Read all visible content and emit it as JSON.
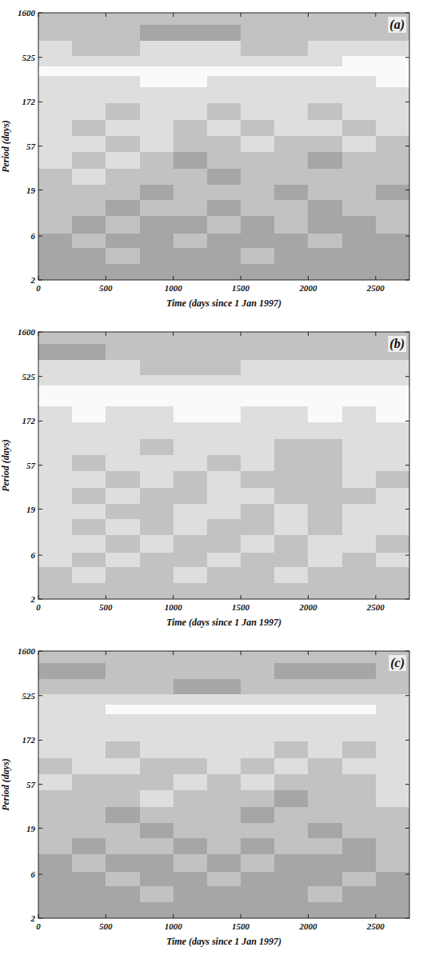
{
  "chart_data": [
    {
      "type": "heatmap",
      "title": "(a)",
      "x_label": "Time (days since 1 Jan 1997)",
      "y_label": "Period (days)",
      "xlim": [
        0,
        2750
      ],
      "xticks": [
        0,
        500,
        1000,
        1500,
        2000,
        2500
      ],
      "ylim": [
        2,
        1600
      ],
      "yticks": [
        2,
        6,
        19,
        57,
        172,
        525,
        1600
      ],
      "log": "y",
      "zlim": [
        0,
        4
      ],
      "x_edges": [
        0,
        250,
        500,
        750,
        1000,
        1250,
        1500,
        1750,
        2000,
        2250,
        2500,
        2750
      ],
      "y_edges": [
        2,
        3,
        4.5,
        6.5,
        10,
        15,
        22,
        33,
        50,
        75,
        110,
        170,
        250,
        330,
        420,
        550,
        800,
        1200,
        1600
      ],
      "cells": [
        [
          3,
          3,
          3,
          3,
          3,
          3,
          3,
          3,
          3,
          3,
          3
        ],
        [
          3,
          3,
          2,
          3,
          3,
          3,
          2,
          3,
          3,
          3,
          3
        ],
        [
          3,
          2,
          3,
          3,
          2,
          3,
          3,
          3,
          2,
          3,
          3
        ],
        [
          2,
          3,
          2,
          3,
          3,
          2,
          3,
          2,
          3,
          3,
          2
        ],
        [
          2,
          2,
          3,
          2,
          2,
          3,
          2,
          2,
          3,
          2,
          2
        ],
        [
          2,
          2,
          2,
          3,
          2,
          2,
          2,
          3,
          2,
          2,
          3
        ],
        [
          2,
          1,
          2,
          2,
          2,
          3,
          2,
          2,
          2,
          2,
          2
        ],
        [
          1,
          2,
          1,
          2,
          3,
          2,
          2,
          2,
          3,
          2,
          2
        ],
        [
          1,
          1,
          2,
          1,
          2,
          2,
          1,
          2,
          2,
          1,
          2
        ],
        [
          1,
          2,
          1,
          1,
          2,
          1,
          2,
          1,
          1,
          2,
          1
        ],
        [
          1,
          1,
          2,
          1,
          1,
          2,
          1,
          1,
          2,
          1,
          1
        ],
        [
          1,
          1,
          1,
          1,
          1,
          1,
          1,
          1,
          1,
          1,
          1
        ],
        [
          1,
          1,
          1,
          0,
          0,
          1,
          1,
          1,
          1,
          1,
          0
        ],
        [
          0,
          0,
          0,
          0,
          0,
          0,
          0,
          0,
          0,
          0,
          0
        ],
        [
          1,
          1,
          1,
          1,
          1,
          1,
          1,
          1,
          1,
          0,
          0
        ],
        [
          1,
          2,
          2,
          1,
          1,
          1,
          2,
          2,
          1,
          1,
          1
        ],
        [
          2,
          2,
          2,
          3,
          3,
          3,
          2,
          2,
          2,
          2,
          2
        ],
        [
          2,
          2,
          2,
          2,
          2,
          2,
          2,
          2,
          2,
          2,
          2
        ]
      ]
    },
    {
      "type": "heatmap",
      "title": "(b)",
      "x_label": "Time (days since 1 Jan 1997)",
      "y_label": "Period (days)",
      "xlim": [
        0,
        2750
      ],
      "xticks": [
        0,
        500,
        1000,
        1500,
        2000,
        2500
      ],
      "ylim": [
        2,
        1600
      ],
      "yticks": [
        2,
        6,
        19,
        57,
        172,
        525,
        1600
      ],
      "log": "y",
      "zlim": [
        0,
        4
      ],
      "x_edges": [
        0,
        250,
        500,
        750,
        1000,
        1250,
        1500,
        1750,
        2000,
        2250,
        2500,
        2750
      ],
      "y_edges": [
        2,
        3,
        4.5,
        6.5,
        10,
        15,
        22,
        33,
        50,
        75,
        110,
        170,
        250,
        330,
        420,
        550,
        800,
        1200,
        1600
      ],
      "cells": [
        [
          2,
          2,
          2,
          2,
          2,
          2,
          2,
          2,
          2,
          2,
          2
        ],
        [
          2,
          1,
          2,
          2,
          1,
          2,
          2,
          1,
          2,
          2,
          2
        ],
        [
          1,
          2,
          1,
          2,
          2,
          1,
          2,
          2,
          1,
          2,
          1
        ],
        [
          1,
          1,
          2,
          1,
          2,
          2,
          1,
          2,
          1,
          1,
          2
        ],
        [
          1,
          2,
          1,
          2,
          1,
          2,
          2,
          1,
          2,
          1,
          1
        ],
        [
          1,
          1,
          2,
          2,
          1,
          1,
          2,
          1,
          2,
          1,
          1
        ],
        [
          1,
          2,
          1,
          2,
          2,
          1,
          1,
          2,
          2,
          2,
          1
        ],
        [
          1,
          1,
          2,
          1,
          2,
          1,
          2,
          2,
          2,
          1,
          2
        ],
        [
          1,
          2,
          1,
          1,
          1,
          2,
          1,
          2,
          2,
          1,
          1
        ],
        [
          1,
          1,
          1,
          2,
          1,
          1,
          1,
          2,
          2,
          1,
          1
        ],
        [
          1,
          1,
          1,
          1,
          1,
          1,
          1,
          1,
          1,
          1,
          1
        ],
        [
          1,
          0,
          1,
          1,
          0,
          0,
          1,
          1,
          0,
          1,
          0
        ],
        [
          0,
          0,
          0,
          0,
          0,
          0,
          0,
          0,
          0,
          0,
          0
        ],
        [
          0,
          0,
          0,
          0,
          0,
          0,
          0,
          0,
          0,
          0,
          0
        ],
        [
          1,
          1,
          1,
          1,
          1,
          1,
          1,
          1,
          1,
          1,
          1
        ],
        [
          1,
          1,
          1,
          2,
          2,
          2,
          1,
          1,
          1,
          1,
          1
        ],
        [
          3,
          3,
          2,
          2,
          2,
          2,
          2,
          2,
          2,
          2,
          2
        ],
        [
          2,
          2,
          2,
          2,
          2,
          2,
          2,
          2,
          2,
          2,
          2
        ]
      ]
    },
    {
      "type": "heatmap",
      "title": "(c)",
      "x_label": "Time (days since 1 Jan 1997)",
      "y_label": "Period (days)",
      "xlim": [
        0,
        2750
      ],
      "xticks": [
        0,
        500,
        1000,
        1500,
        2000,
        2500
      ],
      "ylim": [
        2,
        1600
      ],
      "yticks": [
        2,
        6,
        19,
        57,
        172,
        525,
        1600
      ],
      "log": "y",
      "zlim": [
        0,
        4
      ],
      "x_edges": [
        0,
        250,
        500,
        750,
        1000,
        1250,
        1500,
        1750,
        2000,
        2250,
        2500,
        2750
      ],
      "y_edges": [
        2,
        3,
        4.5,
        6.5,
        10,
        15,
        22,
        33,
        50,
        75,
        110,
        170,
        250,
        330,
        420,
        550,
        800,
        1200,
        1600
      ],
      "cells": [
        [
          3,
          3,
          3,
          3,
          3,
          3,
          3,
          3,
          3,
          3,
          3
        ],
        [
          3,
          3,
          3,
          2,
          3,
          3,
          3,
          3,
          2,
          3,
          3
        ],
        [
          3,
          3,
          2,
          3,
          3,
          2,
          3,
          3,
          3,
          2,
          3
        ],
        [
          3,
          2,
          3,
          3,
          2,
          3,
          2,
          3,
          3,
          3,
          2
        ],
        [
          2,
          3,
          2,
          2,
          3,
          2,
          3,
          2,
          2,
          3,
          2
        ],
        [
          2,
          2,
          2,
          3,
          2,
          2,
          2,
          2,
          3,
          2,
          2
        ],
        [
          2,
          2,
          3,
          2,
          2,
          2,
          3,
          2,
          2,
          2,
          2
        ],
        [
          2,
          2,
          2,
          1,
          2,
          2,
          2,
          3,
          2,
          2,
          1
        ],
        [
          1,
          2,
          2,
          2,
          1,
          2,
          1,
          2,
          2,
          2,
          1
        ],
        [
          2,
          1,
          1,
          2,
          2,
          1,
          2,
          1,
          2,
          1,
          1
        ],
        [
          1,
          1,
          2,
          1,
          1,
          1,
          1,
          2,
          1,
          2,
          1
        ],
        [
          1,
          1,
          1,
          1,
          1,
          1,
          1,
          1,
          1,
          1,
          1
        ],
        [
          1,
          1,
          1,
          1,
          1,
          1,
          1,
          1,
          1,
          1,
          1
        ],
        [
          1,
          1,
          0,
          0,
          0,
          0,
          0,
          0,
          0,
          0,
          1
        ],
        [
          1,
          1,
          1,
          1,
          1,
          1,
          1,
          1,
          1,
          1,
          1
        ],
        [
          2,
          2,
          2,
          2,
          3,
          3,
          2,
          2,
          2,
          2,
          2
        ],
        [
          3,
          3,
          2,
          2,
          2,
          2,
          2,
          3,
          3,
          3,
          2
        ],
        [
          2,
          2,
          2,
          2,
          2,
          2,
          2,
          2,
          2,
          2,
          2
        ]
      ]
    }
  ]
}
